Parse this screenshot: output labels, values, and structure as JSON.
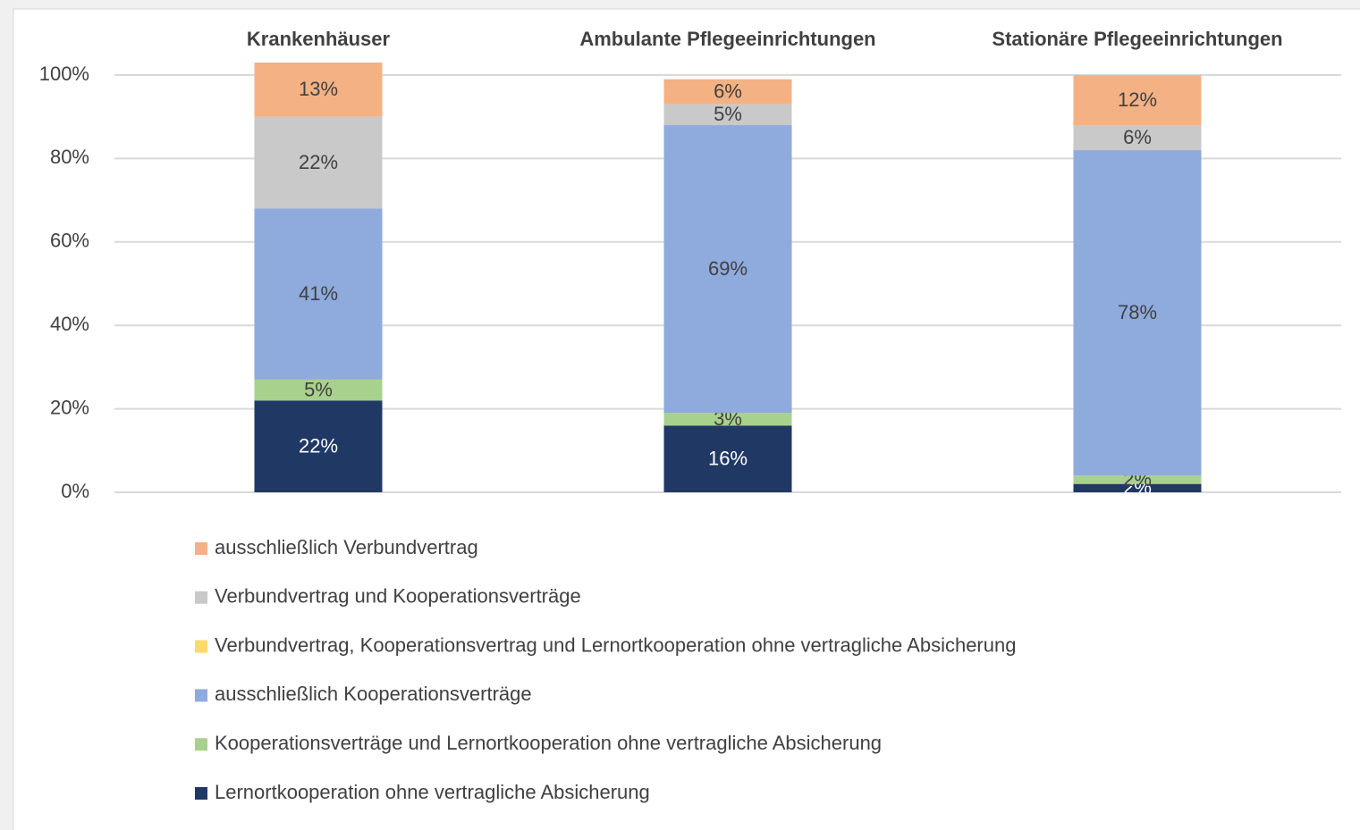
{
  "chart_data": {
    "type": "stacked_bar",
    "categories": [
      "Krankenhäuser",
      "Ambulante Pflegeeinrichtungen",
      "Stationäre Pflegeeinrichtungen"
    ],
    "ylim": [
      0,
      100
    ],
    "yticks": [
      {
        "value": 0,
        "label": "0%"
      },
      {
        "value": 20,
        "label": "20%"
      },
      {
        "value": 40,
        "label": "40%"
      },
      {
        "value": 60,
        "label": "60%"
      },
      {
        "value": 80,
        "label": "80%"
      },
      {
        "value": 100,
        "label": "100%"
      }
    ],
    "grid": true,
    "series": [
      {
        "name": "Lernortkooperation ohne vertragliche Absicherung",
        "color": "#203864",
        "values": [
          22,
          16,
          2
        ],
        "value_labels": [
          "22%",
          "16%",
          "2%"
        ]
      },
      {
        "name": "Kooperationsverträge und Lernortkooperation ohne vertragliche Absicherung",
        "color": "#a9d18e",
        "values": [
          5,
          3,
          2
        ],
        "value_labels": [
          "5%",
          "3%",
          "2%"
        ]
      },
      {
        "name": "ausschließlich Kooperationsverträge",
        "color": "#8faadc",
        "values": [
          41,
          69,
          78
        ],
        "value_labels": [
          "41%",
          "69%",
          "78%"
        ]
      },
      {
        "name": "Verbundvertrag, Kooperationsvertrag und Lernortkooperation ohne vertragliche Absicherung",
        "color": "#ffd966",
        "values": [
          0,
          0,
          0
        ]
      },
      {
        "name": "Verbundvertrag und Kooperationsverträge",
        "color": "#c9c9c9",
        "values": [
          22,
          5,
          6
        ],
        "value_labels": [
          "22%",
          "5%",
          "6%"
        ]
      },
      {
        "name": "ausschließlich Verbundvertrag",
        "color": "#f4b183",
        "values": [
          13,
          6,
          12
        ],
        "value_labels": [
          "13%",
          "6%",
          "12%"
        ]
      }
    ]
  }
}
